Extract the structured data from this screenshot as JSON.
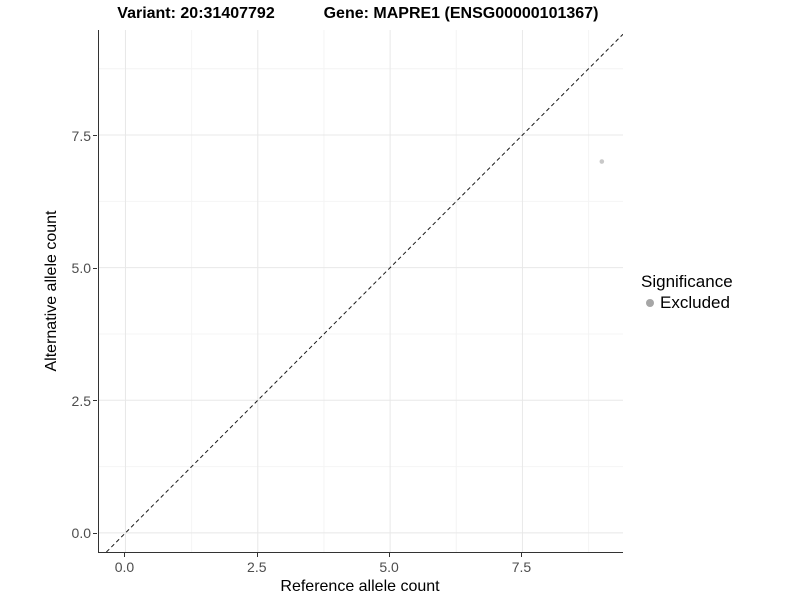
{
  "header": {
    "variant_title": "Variant: 20:31407792",
    "gene_title": "Gene: MAPRE1 (ENSG00000101367)"
  },
  "chart_data": {
    "type": "scatter",
    "title": "",
    "xlabel": "Reference allele count",
    "ylabel": "Alternative allele count",
    "xlim": [
      -0.5,
      9.4
    ],
    "ylim": [
      -0.36,
      9.48
    ],
    "x_ticks": [
      0.0,
      2.5,
      5.0,
      7.5
    ],
    "y_ticks": [
      0.0,
      2.5,
      5.0,
      7.5
    ],
    "x_tick_labels": [
      "0.0",
      "2.5",
      "5.0",
      "7.5"
    ],
    "y_tick_labels": [
      "0.0",
      "2.5",
      "5.0",
      "7.5"
    ],
    "grid": {
      "major": true,
      "minor": true
    },
    "points": [
      {
        "x": 9,
        "y": 7,
        "significance": "Excluded"
      }
    ],
    "identity_line": {
      "style": "dashed",
      "slope": 1,
      "intercept": 0
    },
    "legend": {
      "position": "right",
      "title": "Significance",
      "entries": [
        {
          "label": "Excluded",
          "color": "#a6a6a6"
        }
      ]
    }
  },
  "colors": {
    "background": "#ffffff",
    "axis_line": "#333333",
    "tick": "#333333",
    "tick_label": "#4d4d4d",
    "grid_major": "#e8e8e8",
    "grid_minor": "#f4f4f4",
    "identity_line": "#1a1a1a",
    "point": "#c8c8c8",
    "legend_dot": "#a6a6a6"
  }
}
